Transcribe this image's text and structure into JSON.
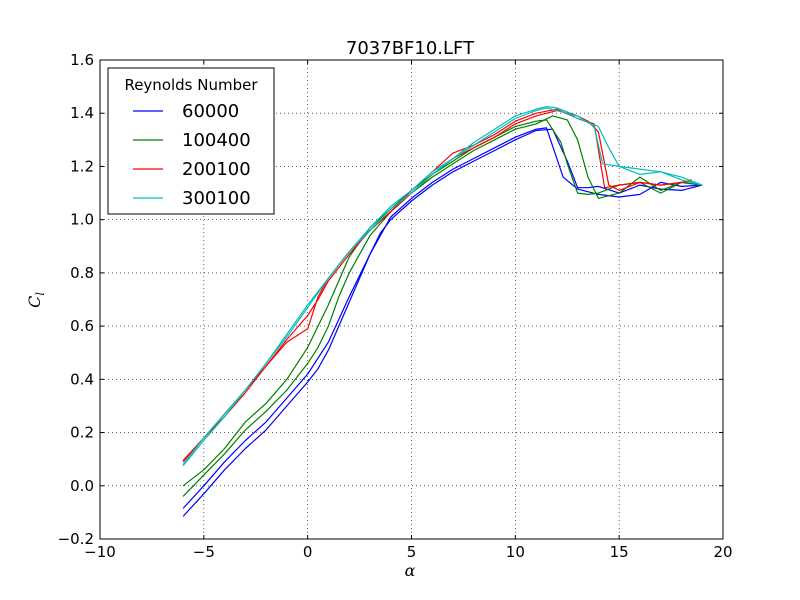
{
  "chart_data": {
    "type": "line",
    "title": "7037BF10.LFT",
    "xlabel": "α",
    "ylabel": "C",
    "ylabel_subscript": "l",
    "xlim": [
      -10,
      20
    ],
    "ylim": [
      -0.2,
      1.6
    ],
    "xticks": [
      -10,
      -5,
      0,
      5,
      10,
      15,
      20
    ],
    "xtick_labels": [
      "−10",
      "−5",
      "0",
      "5",
      "10",
      "15",
      "20"
    ],
    "yticks": [
      -0.2,
      0.0,
      0.2,
      0.4,
      0.6,
      0.8,
      1.0,
      1.2,
      1.4,
      1.6
    ],
    "ytick_labels": [
      "−0.2",
      "0.0",
      "0.2",
      "0.4",
      "0.6",
      "0.8",
      "1.0",
      "1.2",
      "1.4",
      "1.6"
    ],
    "grid": true,
    "legend_title": "Reynolds Number",
    "legend_position": "upper-left",
    "series": [
      {
        "name": "60000",
        "color": "#0000ff",
        "curves": [
          {
            "x": [
              -6,
              -5,
              -4,
              -3,
              -2,
              -1,
              0,
              0.5,
              1,
              2,
              3,
              3.5,
              4,
              5,
              6,
              7,
              8,
              9,
              10,
              11,
              11.8,
              12.5,
              13,
              13.5,
              14,
              15,
              16,
              17,
              18,
              19
            ],
            "y": [
              -0.115,
              -0.03,
              0.06,
              0.14,
              0.21,
              0.3,
              0.39,
              0.44,
              0.51,
              0.69,
              0.87,
              0.95,
              1.0,
              1.07,
              1.13,
              1.18,
              1.22,
              1.26,
              1.3,
              1.335,
              1.34,
              1.22,
              1.12,
              1.12,
              1.125,
              1.1,
              1.13,
              1.115,
              1.11,
              1.13
            ]
          },
          {
            "x": [
              -6,
              -5,
              -4,
              -3,
              -2,
              -1,
              0,
              1,
              2,
              3,
              4,
              5,
              6,
              7,
              8,
              9,
              10,
              11,
              11.5,
              12.3,
              13,
              14,
              15,
              16,
              17,
              18,
              19
            ],
            "y": [
              -0.085,
              0.0,
              0.09,
              0.17,
              0.24,
              0.33,
              0.42,
              0.54,
              0.71,
              0.87,
              1.01,
              1.08,
              1.14,
              1.19,
              1.23,
              1.27,
              1.31,
              1.34,
              1.345,
              1.16,
              1.115,
              1.095,
              1.085,
              1.095,
              1.14,
              1.125,
              1.13
            ]
          }
        ]
      },
      {
        "name": "100400",
        "color": "#008000",
        "curves": [
          {
            "x": [
              -6,
              -5,
              -4,
              -3,
              -2,
              -1,
              0,
              0.5,
              1,
              1.5,
              2,
              3,
              4,
              5,
              6,
              7,
              8,
              9,
              10,
              11,
              11.8,
              12.5,
              13,
              13.5,
              14,
              15,
              16,
              17,
              18,
              19
            ],
            "y": [
              -0.04,
              0.04,
              0.12,
              0.21,
              0.28,
              0.36,
              0.46,
              0.52,
              0.6,
              0.71,
              0.8,
              0.94,
              1.03,
              1.1,
              1.16,
              1.21,
              1.26,
              1.3,
              1.34,
              1.36,
              1.39,
              1.375,
              1.3,
              1.16,
              1.08,
              1.1,
              1.16,
              1.11,
              1.14,
              1.13
            ]
          },
          {
            "x": [
              -6,
              -5,
              -4,
              -3,
              -2,
              -1,
              0,
              1,
              2,
              3,
              4,
              5,
              6,
              7,
              8,
              9,
              10,
              11,
              11.5,
              12.2,
              12.5,
              13,
              13.5,
              14,
              15,
              16,
              17,
              18,
              19
            ],
            "y": [
              0.0,
              0.06,
              0.14,
              0.24,
              0.31,
              0.4,
              0.52,
              0.68,
              0.86,
              0.97,
              1.04,
              1.11,
              1.17,
              1.22,
              1.27,
              1.31,
              1.35,
              1.37,
              1.375,
              1.29,
              1.21,
              1.1,
              1.095,
              1.1,
              1.13,
              1.14,
              1.1,
              1.14,
              1.13
            ]
          }
        ]
      },
      {
        "name": "200100",
        "color": "#ff0000",
        "curves": [
          {
            "x": [
              -6,
              -5,
              -4,
              -3,
              -2,
              -1,
              0,
              0.5,
              1,
              2,
              3,
              4,
              5,
              6,
              7,
              8,
              9,
              10,
              11,
              12,
              13,
              13.5,
              14,
              14.5,
              15,
              16,
              17,
              18,
              18.5
            ],
            "y": [
              0.09,
              0.18,
              0.26,
              0.35,
              0.45,
              0.54,
              0.59,
              0.71,
              0.78,
              0.88,
              0.96,
              1.03,
              1.1,
              1.17,
              1.23,
              1.27,
              1.31,
              1.36,
              1.39,
              1.41,
              1.39,
              1.37,
              1.33,
              1.13,
              1.11,
              1.14,
              1.13,
              1.14,
              1.15
            ]
          },
          {
            "x": [
              -6,
              -5,
              -4,
              -3,
              -2,
              -1,
              0,
              0.5,
              1,
              2,
              3,
              4,
              5,
              6,
              7,
              8,
              9,
              10,
              11,
              12,
              13,
              13.8,
              14.3,
              15,
              16,
              17,
              18,
              18.5
            ],
            "y": [
              0.095,
              0.18,
              0.27,
              0.36,
              0.45,
              0.55,
              0.64,
              0.7,
              0.77,
              0.87,
              0.96,
              1.03,
              1.11,
              1.18,
              1.25,
              1.28,
              1.32,
              1.37,
              1.4,
              1.415,
              1.38,
              1.36,
              1.12,
              1.13,
              1.14,
              1.13,
              1.14,
              1.145
            ]
          }
        ]
      },
      {
        "name": "300100",
        "color": "#00bfbf",
        "curves": [
          {
            "x": [
              -6,
              -5,
              -4,
              -3,
              -2,
              -1,
              0,
              1,
              2,
              3,
              4,
              5,
              6,
              7,
              8,
              9,
              10,
              11,
              11.5,
              12,
              12.5,
              13,
              13.5,
              14,
              14.5,
              15,
              16,
              17,
              18,
              19
            ],
            "y": [
              0.075,
              0.17,
              0.26,
              0.36,
              0.46,
              0.56,
              0.67,
              0.78,
              0.88,
              0.96,
              1.04,
              1.1,
              1.17,
              1.23,
              1.28,
              1.33,
              1.38,
              1.41,
              1.42,
              1.41,
              1.4,
              1.38,
              1.365,
              1.35,
              1.27,
              1.2,
              1.19,
              1.18,
              1.16,
              1.13
            ]
          },
          {
            "x": [
              -6,
              -5,
              -4,
              -3,
              -2,
              -1,
              0,
              1,
              2,
              3,
              4,
              5,
              6,
              7,
              8,
              9,
              10,
              11,
              11.5,
              12,
              13,
              13.8,
              14.2,
              15,
              16,
              17,
              18,
              19
            ],
            "y": [
              0.08,
              0.18,
              0.27,
              0.36,
              0.46,
              0.57,
              0.68,
              0.78,
              0.88,
              0.97,
              1.05,
              1.11,
              1.18,
              1.23,
              1.29,
              1.34,
              1.39,
              1.415,
              1.425,
              1.42,
              1.39,
              1.35,
              1.21,
              1.2,
              1.17,
              1.18,
              1.15,
              1.13
            ]
          }
        ]
      }
    ]
  }
}
